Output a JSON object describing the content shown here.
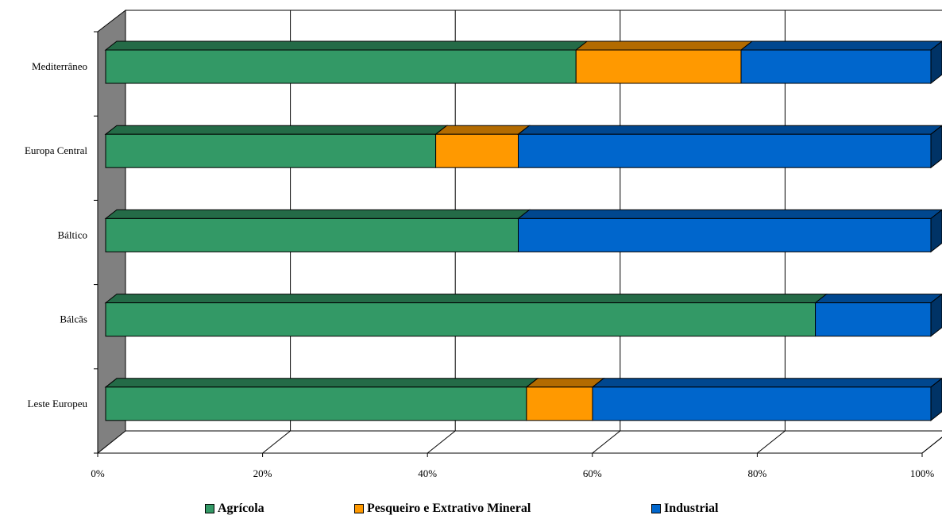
{
  "chart_data": {
    "type": "bar",
    "orientation": "horizontal",
    "stacked": "percent",
    "three_d": true,
    "categories": [
      "Mediterrâneo",
      "Europa Central",
      "Báltico",
      "Bálcãs",
      "Leste Europeu"
    ],
    "series": [
      {
        "name": "Agrícola",
        "color": "#339966",
        "values": [
          57,
          40,
          50,
          86,
          51
        ]
      },
      {
        "name": "Pesqueiro e Extrativo Mineral",
        "color": "#FF9900",
        "values": [
          20,
          10,
          0,
          0,
          8
        ]
      },
      {
        "name": "Industrial",
        "color": "#0066CC",
        "values": [
          23,
          50,
          50,
          14,
          41
        ]
      }
    ],
    "xlim": [
      0,
      100
    ],
    "x_ticks": [
      "0%",
      "20%",
      "40%",
      "60%",
      "80%",
      "100%"
    ],
    "grid": true,
    "legend_position": "bottom"
  }
}
